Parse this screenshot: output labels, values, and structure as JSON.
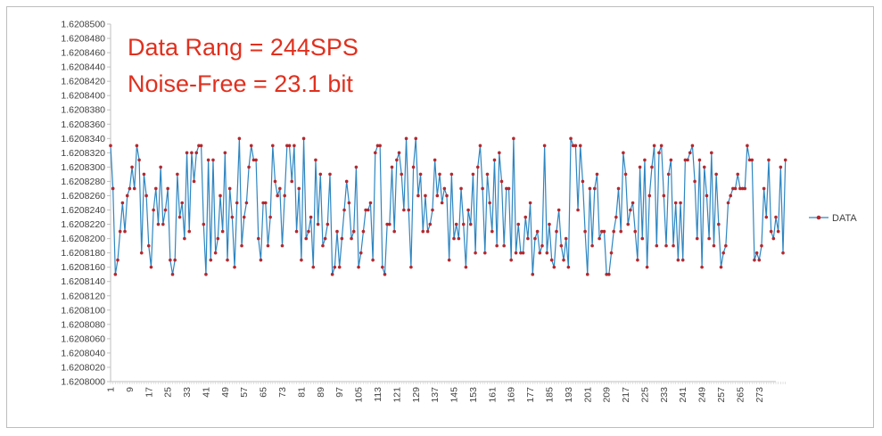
{
  "chart_data": {
    "type": "line",
    "annotations": [
      "Data Rang = 244SPS",
      "Noise-Free = 23.1 bit"
    ],
    "ylim": [
      1.6208,
      1.62085
    ],
    "y_ticks": [
      "1.6208500",
      "1.6208480",
      "1.6208460",
      "1.6208440",
      "1.6208420",
      "1.6208400",
      "1.6208380",
      "1.6208360",
      "1.6208340",
      "1.6208320",
      "1.6208300",
      "1.6208280",
      "1.6208260",
      "1.6208240",
      "1.6208220",
      "1.6208200",
      "1.6208180",
      "1.6208160",
      "1.6208140",
      "1.6208120",
      "1.6208100",
      "1.6208080",
      "1.6208060",
      "1.6208040",
      "1.6208020",
      "1.6208000"
    ],
    "x_tick_labels": [
      "1",
      "9",
      "17",
      "25",
      "33",
      "41",
      "49",
      "57",
      "65",
      "73",
      "81",
      "89",
      "97",
      "105",
      "113",
      "121",
      "129",
      "137",
      "145",
      "153",
      "161",
      "169",
      "177",
      "185",
      "193",
      "201",
      "209",
      "217",
      "225",
      "233",
      "241",
      "249",
      "257",
      "265",
      "273"
    ],
    "xlim": [
      1,
      280
    ],
    "grid": false,
    "legend_position": "right",
    "colors": {
      "line": "#2e86c1",
      "marker": "#b4282e",
      "annotation": "#e0301e"
    },
    "series": [
      {
        "name": "DATA",
        "values": [
          1.620833,
          1.620827,
          1.620815,
          1.620817,
          1.620821,
          1.620825,
          1.620821,
          1.620826,
          1.620827,
          1.62083,
          1.620827,
          1.620833,
          1.620831,
          1.620818,
          1.620829,
          1.620826,
          1.620819,
          1.620816,
          1.620824,
          1.620827,
          1.620822,
          1.62083,
          1.620822,
          1.620824,
          1.620827,
          1.620817,
          1.620815,
          1.620817,
          1.620829,
          1.620823,
          1.620825,
          1.62082,
          1.620832,
          1.620821,
          1.620832,
          1.620828,
          1.620832,
          1.620833,
          1.620833,
          1.620822,
          1.620815,
          1.620831,
          1.620817,
          1.620831,
          1.620818,
          1.62082,
          1.620826,
          1.620821,
          1.620832,
          1.620817,
          1.620827,
          1.620823,
          1.620816,
          1.620825,
          1.620834,
          1.620819,
          1.620823,
          1.620825,
          1.62083,
          1.620833,
          1.620831,
          1.620831,
          1.62082,
          1.620817,
          1.620825,
          1.620825,
          1.620819,
          1.620823,
          1.620833,
          1.620828,
          1.620826,
          1.620827,
          1.620819,
          1.620826,
          1.620833,
          1.620833,
          1.620828,
          1.620833,
          1.620821,
          1.620827,
          1.620817,
          1.620834,
          1.62082,
          1.620821,
          1.620823,
          1.620816,
          1.620831,
          1.620822,
          1.620829,
          1.620819,
          1.62082,
          1.620822,
          1.620829,
          1.620815,
          1.620816,
          1.620821,
          1.620816,
          1.62082,
          1.620824,
          1.620828,
          1.620825,
          1.62082,
          1.620821,
          1.62083,
          1.620816,
          1.620818,
          1.620821,
          1.620824,
          1.620824,
          1.620825,
          1.620817,
          1.620832,
          1.620833,
          1.620833,
          1.620816,
          1.620815,
          1.620822,
          1.620822,
          1.62083,
          1.620821,
          1.620831,
          1.620832,
          1.620829,
          1.620824,
          1.620834,
          1.620824,
          1.620816,
          1.62083,
          1.620834,
          1.620826,
          1.620829,
          1.620821,
          1.620826,
          1.620821,
          1.620822,
          1.620824,
          1.620831,
          1.620826,
          1.620829,
          1.620825,
          1.620827,
          1.620826,
          1.620817,
          1.620829,
          1.62082,
          1.620822,
          1.62082,
          1.620827,
          1.620822,
          1.620816,
          1.620824,
          1.620822,
          1.620829,
          1.620818,
          1.62083,
          1.620833,
          1.620827,
          1.620818,
          1.620829,
          1.620825,
          1.620821,
          1.620831,
          1.620819,
          1.620832,
          1.620828,
          1.620819,
          1.620827,
          1.620827,
          1.620817,
          1.620834,
          1.620818,
          1.620822,
          1.620818,
          1.620818,
          1.620823,
          1.62082,
          1.620825,
          1.620815,
          1.62082,
          1.620821,
          1.620818,
          1.620819,
          1.620833,
          1.620818,
          1.620822,
          1.620817,
          1.620816,
          1.620821,
          1.620824,
          1.620819,
          1.620817,
          1.62082,
          1.620816,
          1.620834,
          1.620833,
          1.620833,
          1.620824,
          1.620833,
          1.620828,
          1.620821,
          1.620815,
          1.620827,
          1.620819,
          1.620827,
          1.620829,
          1.62082,
          1.620821,
          1.620821,
          1.620815,
          1.620815,
          1.620818,
          1.620821,
          1.620823,
          1.620827,
          1.620821,
          1.620832,
          1.620829,
          1.620822,
          1.620824,
          1.620825,
          1.620821,
          1.620817,
          1.62083,
          1.62082,
          1.620831,
          1.620816,
          1.620826,
          1.62083,
          1.620833,
          1.620819,
          1.620832,
          1.620833,
          1.620826,
          1.620819,
          1.620829,
          1.620831,
          1.620819,
          1.620825,
          1.620817,
          1.620825,
          1.620817,
          1.620831,
          1.620831,
          1.620832,
          1.620833,
          1.620828,
          1.62082,
          1.620831,
          1.620816,
          1.62083,
          1.620826,
          1.62082,
          1.620832,
          1.620819,
          1.620829,
          1.620822,
          1.620816,
          1.620818,
          1.620819,
          1.620825,
          1.620826,
          1.620827,
          1.620827,
          1.620829,
          1.620827,
          1.620827,
          1.620827,
          1.620833,
          1.620831,
          1.620831,
          1.620817,
          1.620818,
          1.620817,
          1.620819,
          1.620827,
          1.620823,
          1.620831,
          1.620821,
          1.62082,
          1.620823,
          1.620821,
          1.62083,
          1.620818,
          1.620831
        ]
      }
    ]
  }
}
